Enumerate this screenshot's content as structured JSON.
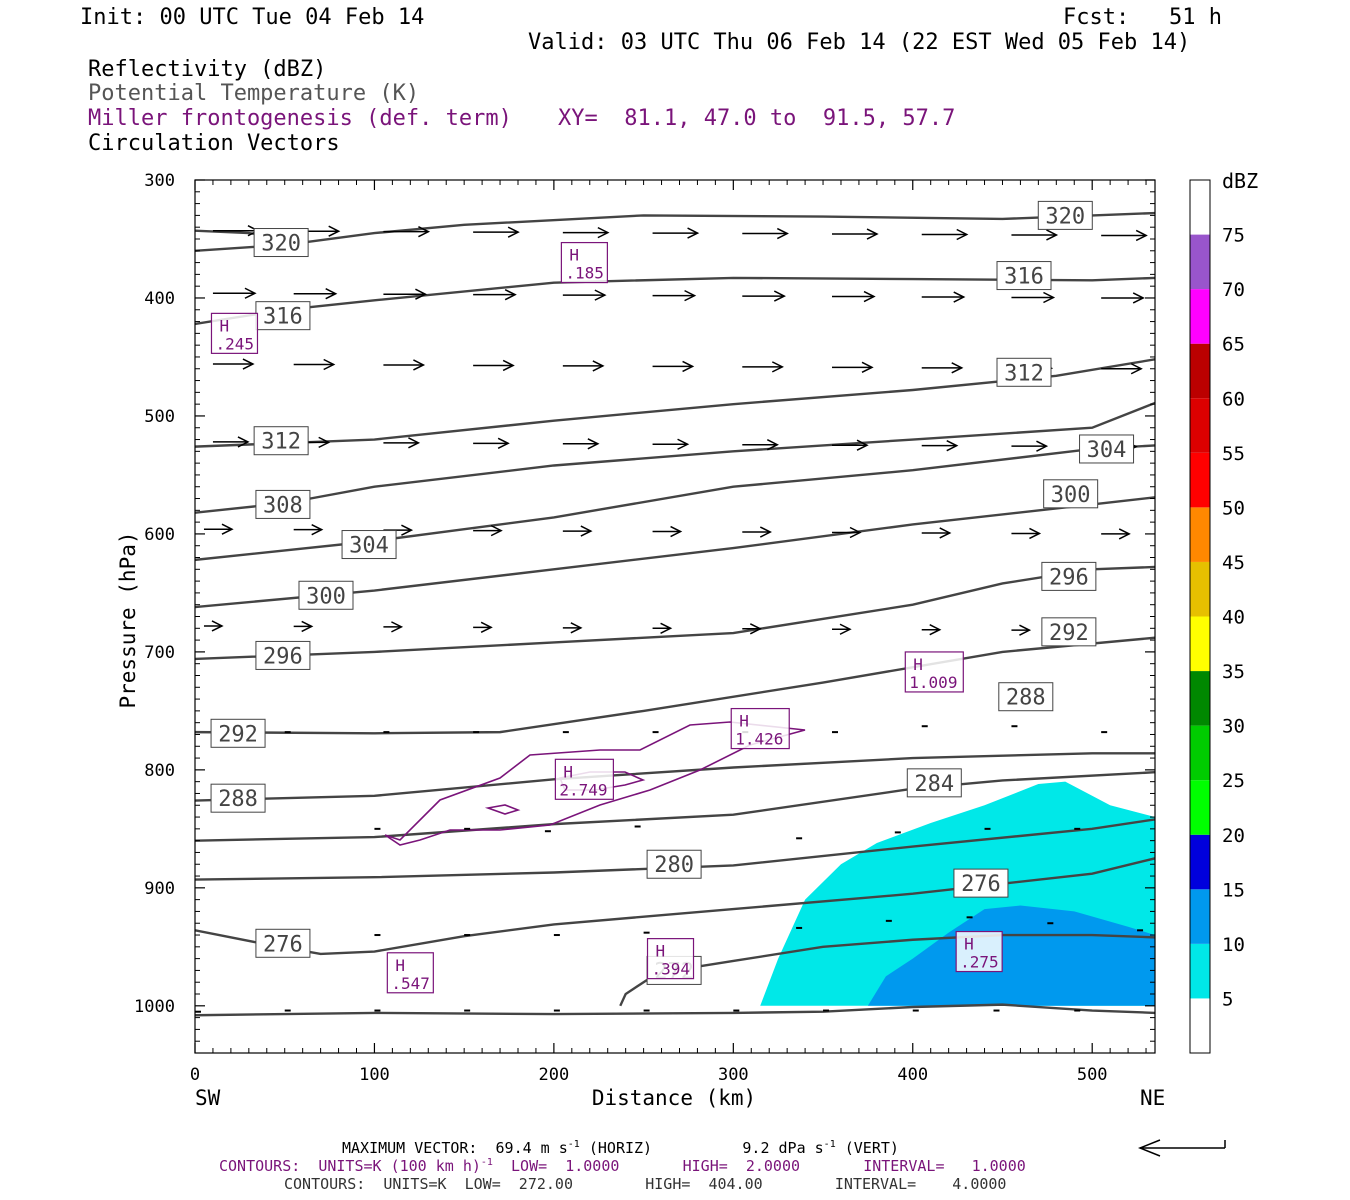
{
  "header": {
    "init": "Init: 00 UTC Tue 04 Feb 14",
    "fcst": "Fcst:   51 h",
    "valid": "Valid: 03 UTC Thu 06 Feb 14 (22 EST Wed 05 Feb 14)"
  },
  "fields": {
    "reflectivity": "Reflectivity (dBZ)",
    "theta": "Potential Temperature (K)",
    "miller": "Miller frontogenesis (def. term)",
    "xy": "XY=  81.1, 47.0 to  91.5, 57.7",
    "vectors": "Circulation Vectors"
  },
  "footer": {
    "max_vector_prefix": "MAXIMUM VECTOR:  69.4 m s",
    "max_vector_mid": " (HORIZ)          9.2 dPa s",
    "max_vector_suffix": " (VERT)",
    "sup": "-1",
    "contours1_prefix": "CONTOURS:  UNITS=K (100 km h)",
    "contours1_suffix": "  LOW=  1.0000       HIGH=  2.0000       INTERVAL=   1.0000",
    "contours2": "CONTOURS:  UNITS=K  LOW=  272.00        HIGH=  404.00        INTERVAL=    4.0000"
  },
  "colors": {
    "theta": "#444444",
    "miller": "#7a147a",
    "refl_5": "#00e8e8",
    "refl_10": "#0099ee"
  },
  "chart_data": {
    "type": "cross-section",
    "xlabel": "Distance (km)",
    "ylabel": "Pressure (hPa)",
    "xlim": [
      0,
      535
    ],
    "ylim": [
      1040,
      300
    ],
    "x_ticks": [
      0,
      100,
      200,
      300,
      400,
      500
    ],
    "y_ticks": [
      300,
      400,
      500,
      600,
      700,
      800,
      900,
      1000
    ],
    "x_end_labels": [
      "SW",
      "NE"
    ],
    "colorbar": {
      "unit": "dBZ",
      "levels": [
        5,
        10,
        15,
        20,
        25,
        30,
        35,
        40,
        45,
        50,
        55,
        60,
        65,
        70,
        75
      ],
      "colors": [
        "#ffffff",
        "#00e8e8",
        "#0099ee",
        "#0000dd",
        "#00ff00",
        "#00cc00",
        "#008800",
        "#ffff00",
        "#e6c000",
        "#ff8800",
        "#ff0000",
        "#dd0000",
        "#bb0000",
        "#ff00ff",
        "#9955cc",
        "#ffffff"
      ]
    },
    "theta_contours": [
      {
        "label": "320",
        "points": [
          [
            0,
            343
          ],
          [
            30,
            345
          ],
          [
            50,
            349
          ]
        ]
      },
      {
        "label": "320",
        "points": [
          [
            0,
            360
          ],
          [
            50,
            355
          ],
          [
            100,
            345
          ],
          [
            150,
            338
          ],
          [
            250,
            330
          ],
          [
            350,
            331
          ],
          [
            450,
            333
          ],
          [
            535,
            328
          ]
        ]
      },
      {
        "label": "316",
        "points": [
          [
            0,
            422
          ],
          [
            50,
            410
          ],
          [
            100,
            402
          ],
          [
            200,
            387
          ],
          [
            300,
            383
          ],
          [
            400,
            384
          ],
          [
            500,
            385
          ],
          [
            535,
            383
          ]
        ]
      },
      {
        "label": "312",
        "points": [
          [
            0,
            526
          ],
          [
            100,
            520
          ],
          [
            200,
            504
          ],
          [
            300,
            490
          ],
          [
            400,
            478
          ],
          [
            480,
            466
          ],
          [
            535,
            452
          ]
        ]
      },
      {
        "label": "308",
        "points": [
          [
            0,
            582
          ],
          [
            50,
            574
          ],
          [
            100,
            560
          ],
          [
            200,
            542
          ],
          [
            300,
            530
          ],
          [
            400,
            520
          ],
          [
            500,
            510
          ],
          [
            535,
            489
          ]
        ]
      },
      {
        "label": "304",
        "points": [
          [
            0,
            622
          ],
          [
            100,
            606
          ],
          [
            200,
            586
          ],
          [
            300,
            560
          ],
          [
            400,
            546
          ],
          [
            500,
            528
          ],
          [
            535,
            525
          ]
        ]
      },
      {
        "label": "300",
        "points": [
          [
            0,
            662
          ],
          [
            100,
            648
          ],
          [
            200,
            630
          ],
          [
            300,
            612
          ],
          [
            400,
            592
          ],
          [
            500,
            575
          ],
          [
            535,
            569
          ]
        ]
      },
      {
        "label": "296",
        "points": [
          [
            0,
            706
          ],
          [
            100,
            700
          ],
          [
            200,
            692
          ],
          [
            300,
            684
          ],
          [
            400,
            660
          ],
          [
            450,
            642
          ],
          [
            500,
            630
          ],
          [
            535,
            628
          ]
        ]
      },
      {
        "label": "292",
        "points": [
          [
            0,
            768
          ],
          [
            100,
            769
          ],
          [
            170,
            768
          ],
          [
            250,
            750
          ],
          [
            350,
            726
          ],
          [
            450,
            700
          ],
          [
            535,
            688
          ]
        ]
      },
      {
        "label": "288",
        "points": [
          [
            0,
            826
          ],
          [
            100,
            822
          ],
          [
            200,
            808
          ],
          [
            300,
            798
          ],
          [
            400,
            790
          ],
          [
            500,
            786
          ],
          [
            535,
            786
          ]
        ]
      },
      {
        "label": "284",
        "points": [
          [
            0,
            860
          ],
          [
            100,
            857
          ],
          [
            200,
            846
          ],
          [
            300,
            838
          ],
          [
            400,
            816
          ],
          [
            450,
            809
          ],
          [
            535,
            802
          ]
        ]
      },
      {
        "label": "280",
        "points": [
          [
            0,
            893
          ],
          [
            100,
            891
          ],
          [
            200,
            887
          ],
          [
            300,
            881
          ],
          [
            400,
            865
          ],
          [
            500,
            850
          ],
          [
            535,
            842
          ]
        ]
      },
      {
        "label": "276",
        "points": [
          [
            0,
            936
          ],
          [
            40,
            948
          ],
          [
            70,
            956
          ],
          [
            100,
            954
          ],
          [
            150,
            941
          ],
          [
            200,
            931
          ],
          [
            300,
            918
          ],
          [
            400,
            905
          ],
          [
            500,
            888
          ],
          [
            535,
            875
          ]
        ]
      },
      {
        "label": "272",
        "points": [
          [
            237,
            1000
          ],
          [
            240,
            990
          ],
          [
            255,
            975
          ],
          [
            275,
            968
          ],
          [
            300,
            962
          ],
          [
            350,
            950
          ],
          [
            400,
            944
          ],
          [
            450,
            940
          ],
          [
            500,
            940
          ],
          [
            535,
            942
          ]
        ]
      },
      {
        "label": "",
        "points": [
          [
            0,
            1008
          ],
          [
            100,
            1006
          ],
          [
            200,
            1007
          ],
          [
            300,
            1006
          ],
          [
            350,
            1005
          ],
          [
            400,
            1001
          ],
          [
            450,
            999
          ],
          [
            500,
            1004
          ],
          [
            535,
            1006
          ]
        ]
      }
    ],
    "frontogenesis_maxima": [
      {
        "label": "H",
        "value": ".185",
        "x": 217,
        "y": 370
      },
      {
        "label": "H",
        "value": ".245",
        "x": 22,
        "y": 430
      },
      {
        "label": "H",
        "value": "1.009",
        "x": 412,
        "y": 717
      },
      {
        "label": "H",
        "value": "1.426",
        "x": 315,
        "y": 765
      },
      {
        "label": "H",
        "value": "2.749",
        "x": 217,
        "y": 808
      },
      {
        "label": "H",
        "value": ".547",
        "x": 120,
        "y": 972
      },
      {
        "label": "H",
        "value": ".394",
        "x": 265,
        "y": 960
      },
      {
        "label": "H",
        "value": ".275",
        "x": 437,
        "y": 954
      }
    ],
    "reflectivity_regions": [
      {
        "dbz": 5,
        "points": [
          [
            315,
            1000
          ],
          [
            325,
            960
          ],
          [
            340,
            910
          ],
          [
            360,
            880
          ],
          [
            380,
            862
          ],
          [
            410,
            845
          ],
          [
            440,
            830
          ],
          [
            470,
            812
          ],
          [
            485,
            810
          ],
          [
            510,
            830
          ],
          [
            535,
            840
          ],
          [
            535,
            1000
          ]
        ]
      },
      {
        "dbz": 10,
        "points": [
          [
            375,
            1000
          ],
          [
            385,
            975
          ],
          [
            400,
            960
          ],
          [
            420,
            938
          ],
          [
            440,
            918
          ],
          [
            460,
            915
          ],
          [
            490,
            920
          ],
          [
            520,
            933
          ],
          [
            535,
            940
          ],
          [
            535,
            1000
          ]
        ]
      }
    ]
  }
}
